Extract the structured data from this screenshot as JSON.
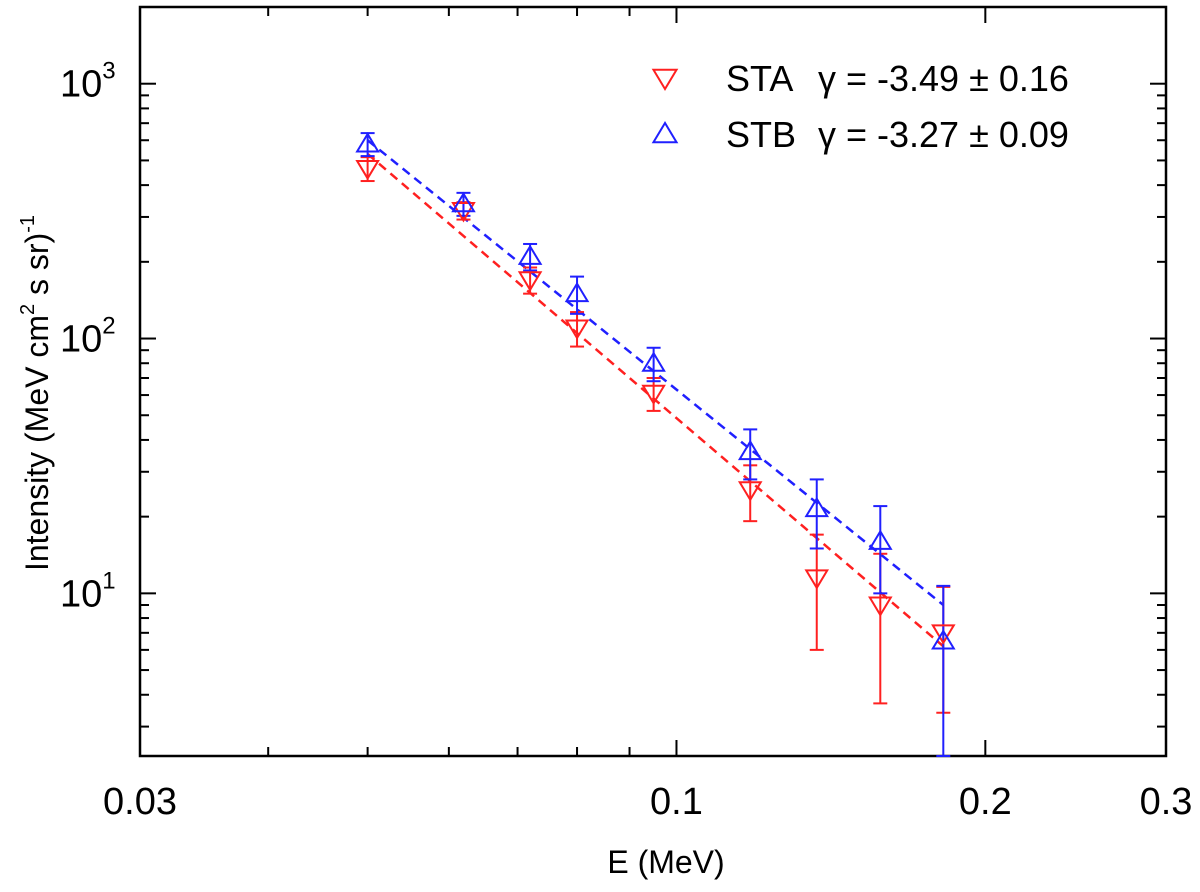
{
  "chart_data": {
    "type": "scatter",
    "xscale": "log",
    "yscale": "log",
    "xlabel": "E (MeV)",
    "ylabel_main": "Intensity (MeV cm",
    "ylabel_sup2": "2",
    "ylabel_mid": " s sr)",
    "ylabel_sup_exp": "-1",
    "xlim": [
      0.03,
      0.3
    ],
    "ylim": [
      2.3,
      2000
    ],
    "x_ticks": [
      {
        "value": 0.03,
        "label": "0.03"
      },
      {
        "value": 0.1,
        "label": "0.1"
      },
      {
        "value": 0.2,
        "label": "0.2"
      },
      {
        "value": 0.3,
        "label": "0.3"
      }
    ],
    "y_ticks": [
      {
        "value": 10,
        "base": "10",
        "exp": "1"
      },
      {
        "value": 100,
        "base": "10",
        "exp": "2"
      },
      {
        "value": 1000,
        "base": "10",
        "exp": "3"
      }
    ],
    "series": [
      {
        "name": "STA",
        "gamma_label": "γ = -3.49 ± 0.16",
        "color": "#ff2020",
        "marker": "triangle-down",
        "x": [
          0.05,
          0.062,
          0.072,
          0.08,
          0.095,
          0.118,
          0.137,
          0.158,
          0.182
        ],
        "y": [
          465,
          318,
          170,
          110,
          61,
          25.5,
          11.5,
          9.0,
          7.0
        ],
        "yerr_low": [
          50,
          25,
          20,
          17,
          9,
          6.3,
          5.5,
          5.3,
          3.6
        ],
        "yerr_high": [
          50,
          25,
          20,
          17,
          9,
          6.3,
          5.5,
          5.3,
          3.6
        ],
        "fit": {
          "x": [
            0.05,
            0.182
          ],
          "y": [
            530,
            6.2
          ]
        }
      },
      {
        "name": "STB",
        "gamma_label": "γ = -3.27 ± 0.09",
        "color": "#2020ff",
        "marker": "triangle-up",
        "x": [
          0.05,
          0.062,
          0.072,
          0.08,
          0.095,
          0.118,
          0.137,
          0.158,
          0.182
        ],
        "y": [
          580,
          338,
          210,
          150,
          80,
          36,
          21.5,
          16,
          6.5
        ],
        "yerr_low": [
          60,
          35,
          25,
          25,
          12,
          8,
          6.5,
          6,
          4.2
        ],
        "yerr_high": [
          60,
          35,
          25,
          25,
          12,
          8,
          6.5,
          6,
          4.2
        ],
        "fit": {
          "x": [
            0.05,
            0.182
          ],
          "y": [
            600,
            9.0
          ]
        }
      }
    ],
    "legend_position": "top-right",
    "grid": false
  }
}
